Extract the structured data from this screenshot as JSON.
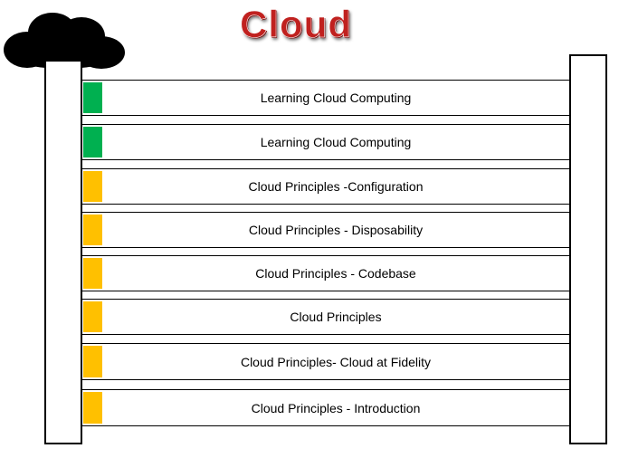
{
  "title": "Cloud",
  "colors": {
    "title": "#c0211f",
    "green": "#00b050",
    "amber": "#ffc000"
  },
  "icons": {
    "cloud": "cloud-icon"
  },
  "rungs": [
    {
      "label": "Learning Cloud Computing",
      "status": "green"
    },
    {
      "label": "Learning Cloud Computing",
      "status": "green"
    },
    {
      "label": "Cloud Principles -Configuration",
      "status": "amber"
    },
    {
      "label": "Cloud Principles - Disposability",
      "status": "amber"
    },
    {
      "label": "Cloud Principles - Codebase",
      "status": "amber"
    },
    {
      "label": "Cloud Principles",
      "status": "amber"
    },
    {
      "label": "Cloud Principles- Cloud at Fidelity",
      "status": "amber"
    },
    {
      "label": "Cloud Principles - Introduction",
      "status": "amber"
    }
  ]
}
